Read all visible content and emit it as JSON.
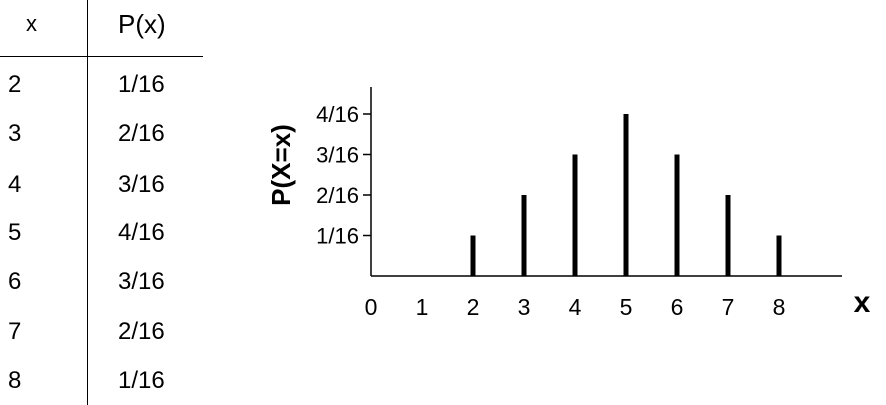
{
  "table": {
    "header_x": "x",
    "header_p": "P(x)",
    "rows": [
      {
        "x": "2",
        "p": "1/16"
      },
      {
        "x": "3",
        "p": "2/16"
      },
      {
        "x": "4",
        "p": "3/16"
      },
      {
        "x": "5",
        "p": "4/16"
      },
      {
        "x": "6",
        "p": "3/16"
      },
      {
        "x": "7",
        "p": "2/16"
      },
      {
        "x": "8",
        "p": "1/16"
      }
    ]
  },
  "chart_data": {
    "type": "bar",
    "xlabel": "x",
    "ylabel": "P(X=x)",
    "x_ticks": [
      "0",
      "1",
      "2",
      "3",
      "4",
      "5",
      "6",
      "7",
      "8"
    ],
    "y_ticks": [
      "1/16",
      "2/16",
      "3/16",
      "4/16"
    ],
    "categories": [
      "2",
      "3",
      "4",
      "5",
      "6",
      "7",
      "8"
    ],
    "x": [
      2,
      3,
      4,
      5,
      6,
      7,
      8
    ],
    "values": [
      0.0625,
      0.125,
      0.1875,
      0.25,
      0.1875,
      0.125,
      0.0625
    ],
    "ylim": [
      0,
      0.3
    ],
    "grid": false,
    "colors": {
      "bar": "#000000",
      "axis": "#000000"
    }
  }
}
